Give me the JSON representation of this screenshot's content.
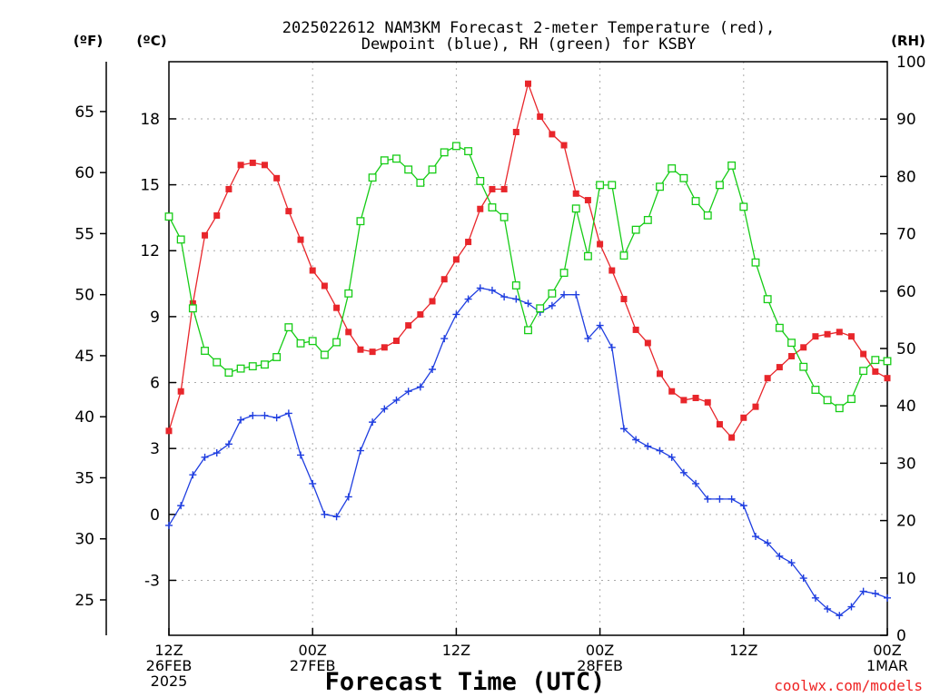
{
  "title_line1": "2025022612 NAM3KM Forecast 2-meter Temperature (red),",
  "title_line2": "Dewpoint (blue), RH (green) for KSBY",
  "unit_f": "(ºF)",
  "unit_c": "(ºC)",
  "unit_rh": "(RH)",
  "credit": "coolwx.com/models",
  "colors": {
    "temperature": "#e8262b",
    "dewpoint": "#1f3ee0",
    "rh": "#16cc16",
    "grid": "#aaaaaa"
  },
  "chart_data": {
    "type": "line",
    "xlabel": "Forecast Time (UTC)",
    "x_ticks": [
      {
        "hour": 0,
        "line1": "12Z",
        "line2": "26FEB",
        "line3": "2025"
      },
      {
        "hour": 12,
        "line1": "00Z",
        "line2": "27FEB",
        "line3": ""
      },
      {
        "hour": 24,
        "line1": "12Z",
        "line2": "",
        "line3": ""
      },
      {
        "hour": 36,
        "line1": "00Z",
        "line2": "28FEB",
        "line3": ""
      },
      {
        "hour": 48,
        "line1": "12Z",
        "line2": "",
        "line3": ""
      },
      {
        "hour": 60,
        "line1": "00Z",
        "line2": "1MAR",
        "line3": ""
      }
    ],
    "xlim": [
      0,
      60
    ],
    "y_celsius": {
      "ticks": [
        "-3",
        "0",
        "3",
        "6",
        "9",
        "12",
        "15",
        "18"
      ],
      "tick_values": [
        -3,
        0,
        3,
        6,
        9,
        12,
        15,
        18
      ],
      "range": [
        -5.5,
        20.6
      ]
    },
    "y_fahrenheit": {
      "ticks": [
        "25",
        "30",
        "35",
        "40",
        "45",
        "50",
        "55",
        "60",
        "65"
      ],
      "tick_values": [
        25,
        30,
        35,
        40,
        45,
        50,
        55,
        60,
        65
      ]
    },
    "y_rh": {
      "ticks": [
        "0",
        "10",
        "20",
        "30",
        "40",
        "50",
        "60",
        "70",
        "80",
        "90",
        "100"
      ],
      "tick_values": [
        0,
        10,
        20,
        30,
        40,
        50,
        60,
        70,
        80,
        90,
        100
      ],
      "range": [
        0,
        100
      ]
    },
    "grid": true,
    "series": [
      {
        "name": "Temperature",
        "axis": "celsius",
        "color": "#e8262b",
        "marker": "filled-square",
        "x": [
          0,
          1,
          2,
          3,
          4,
          5,
          6,
          7,
          8,
          9,
          10,
          11,
          12,
          13,
          14,
          15,
          16,
          17,
          18,
          19,
          20,
          21,
          22,
          23,
          24,
          25,
          26,
          27,
          28,
          29,
          30,
          31,
          32,
          33,
          34,
          35,
          36,
          37,
          38,
          39,
          40,
          41,
          42,
          43,
          44,
          45,
          46,
          47,
          48,
          49,
          50,
          51,
          52,
          53,
          54,
          55,
          56,
          57,
          58,
          59,
          60
        ],
        "values": [
          3.8,
          5.6,
          9.6,
          12.7,
          13.6,
          14.8,
          15.9,
          16.0,
          15.9,
          15.3,
          13.8,
          12.5,
          11.1,
          10.4,
          9.4,
          8.3,
          7.5,
          7.4,
          7.6,
          7.9,
          8.6,
          9.1,
          9.7,
          10.7,
          11.6,
          12.4,
          13.9,
          14.8,
          14.8,
          17.4,
          19.6,
          18.1,
          17.3,
          16.8,
          14.6,
          14.3,
          12.3,
          11.1,
          9.8,
          8.4,
          7.8,
          6.4,
          5.6,
          5.2,
          5.3,
          5.1,
          4.1,
          3.5,
          4.4,
          4.9,
          6.2,
          6.7,
          7.2,
          7.6,
          8.1,
          8.2,
          8.3,
          8.1,
          7.3,
          6.5,
          6.2
        ]
      },
      {
        "name": "Dewpoint",
        "axis": "celsius",
        "color": "#1f3ee0",
        "marker": "plus",
        "x": [
          0,
          1,
          2,
          3,
          4,
          5,
          6,
          7,
          8,
          9,
          10,
          11,
          12,
          13,
          14,
          15,
          16,
          17,
          18,
          19,
          20,
          21,
          22,
          23,
          24,
          25,
          26,
          27,
          28,
          29,
          30,
          31,
          32,
          33,
          34,
          35,
          36,
          37,
          38,
          39,
          40,
          41,
          42,
          43,
          44,
          45,
          46,
          47,
          48,
          49,
          50,
          51,
          52,
          53,
          54,
          55,
          56,
          57,
          58,
          59,
          60
        ],
        "values": [
          -0.5,
          0.4,
          1.8,
          2.6,
          2.8,
          3.2,
          4.3,
          4.5,
          4.5,
          4.4,
          4.6,
          2.7,
          1.4,
          0.0,
          -0.1,
          0.8,
          2.9,
          4.2,
          4.8,
          5.2,
          5.6,
          5.8,
          6.6,
          8.0,
          9.1,
          9.8,
          10.3,
          10.2,
          9.9,
          9.8,
          9.6,
          9.2,
          9.5,
          10.0,
          10.0,
          8.0,
          8.6,
          7.6,
          3.9,
          3.4,
          3.1,
          2.9,
          2.6,
          1.9,
          1.4,
          0.7,
          0.7,
          0.7,
          0.4,
          -1.0,
          -1.3,
          -1.9,
          -2.2,
          -2.9,
          -3.8,
          -4.3,
          -4.6,
          -4.2,
          -3.5,
          -3.6,
          -3.8
        ]
      },
      {
        "name": "RH",
        "axis": "rh",
        "color": "#16cc16",
        "marker": "open-square",
        "x": [
          0,
          1,
          2,
          3,
          4,
          5,
          6,
          7,
          8,
          9,
          10,
          11,
          12,
          13,
          14,
          15,
          16,
          17,
          18,
          19,
          20,
          21,
          22,
          23,
          24,
          25,
          26,
          27,
          28,
          29,
          30,
          31,
          32,
          33,
          34,
          35,
          36,
          37,
          38,
          39,
          40,
          41,
          42,
          43,
          44,
          45,
          46,
          47,
          48,
          49,
          50,
          51,
          52,
          53,
          54,
          55,
          56,
          57,
          58,
          59,
          60
        ],
        "values": [
          73.0,
          69.0,
          57.0,
          49.6,
          47.6,
          45.8,
          46.5,
          46.9,
          47.2,
          48.5,
          53.7,
          50.9,
          51.3,
          48.9,
          51.1,
          59.6,
          72.2,
          79.8,
          82.8,
          83.1,
          81.2,
          78.9,
          81.2,
          84.2,
          85.3,
          84.4,
          79.2,
          74.6,
          72.9,
          61.0,
          53.2,
          57.0,
          59.6,
          63.2,
          74.4,
          66.1,
          78.5,
          78.5,
          66.2,
          70.7,
          72.4,
          78.2,
          81.4,
          79.7,
          75.7,
          73.2,
          78.5,
          81.9,
          74.7,
          65.0,
          58.6,
          53.6,
          51.0,
          46.8,
          42.8,
          41.0,
          39.6,
          41.2,
          46.1,
          48.0,
          47.8
        ]
      }
    ]
  }
}
